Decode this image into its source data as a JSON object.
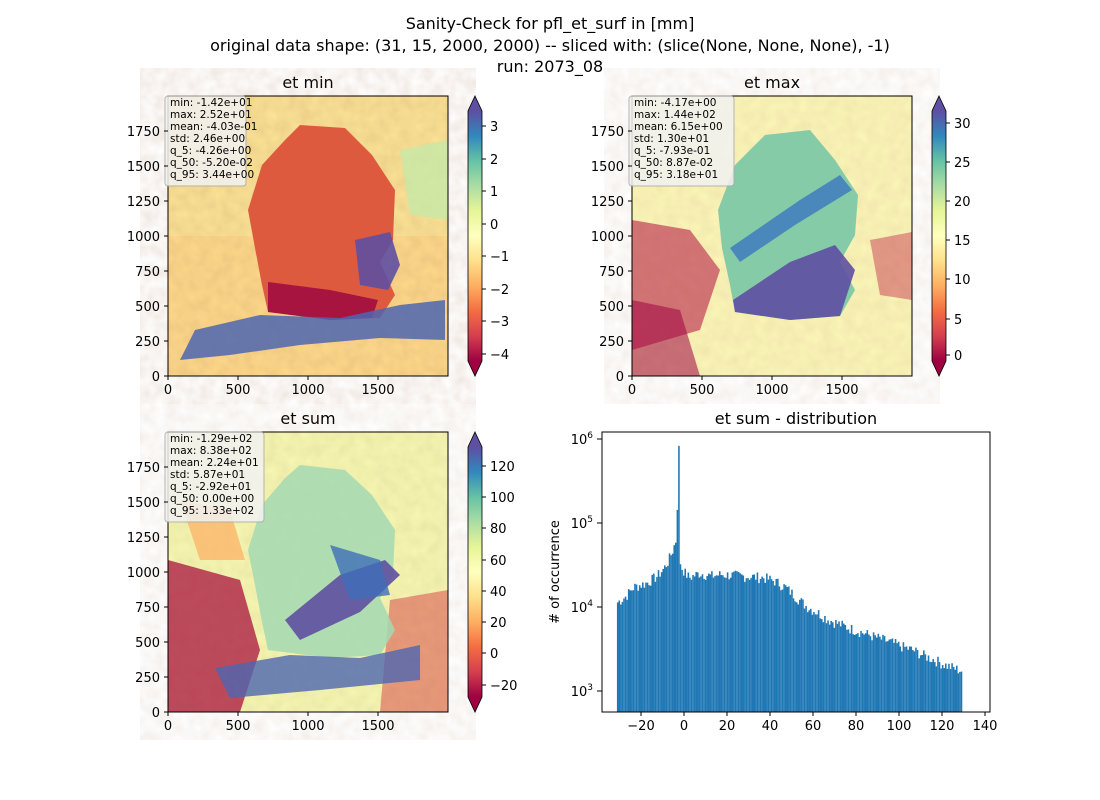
{
  "title_lines": [
    "Sanity-Check for pfl_et_surf in [mm]",
    "original data shape: (31, 15, 2000, 2000) -- sliced with: (slice(None, None, None), -1)",
    "run: 2073_08"
  ],
  "chart_data": [
    {
      "type": "heatmap",
      "title": "et min",
      "xlim": [
        0,
        2000
      ],
      "ylim": [
        0,
        2000
      ],
      "xticks": [
        "0",
        "500",
        "1000",
        "1500"
      ],
      "yticks": [
        "0",
        "250",
        "500",
        "750",
        "1000",
        "1250",
        "1500",
        "1750"
      ],
      "colormap": "Spectral",
      "colorbar": {
        "range": [
          -4.26,
          3.44
        ],
        "extend": "both",
        "ticks": [
          "−4",
          "−3",
          "−2",
          "−1",
          "0",
          "1",
          "2",
          "3"
        ]
      },
      "stats": [
        "min: -1.42e+01",
        "max: 2.52e+01",
        "mean: -4.03e-01",
        "std: 2.46e+00",
        "q_5: -4.26e+00",
        "q_50: -5.20e-02",
        "q_95: 3.44e+00"
      ]
    },
    {
      "type": "heatmap",
      "title": "et max",
      "xlim": [
        0,
        2000
      ],
      "ylim": [
        0,
        2000
      ],
      "xticks": [
        "0",
        "500",
        "1000",
        "1500"
      ],
      "yticks": [
        "0",
        "250",
        "500",
        "750",
        "1000",
        "1250",
        "1500",
        "1750"
      ],
      "colormap": "Spectral",
      "colorbar": {
        "range": [
          -0.793,
          31.8
        ],
        "extend": "both",
        "ticks": [
          "0",
          "5",
          "10",
          "15",
          "20",
          "25",
          "30"
        ]
      },
      "stats": [
        "min: -4.17e+00",
        "max: 1.44e+02",
        "mean: 6.15e+00",
        "std: 1.30e+01",
        "q_5: -7.93e-01",
        "q_50: 8.87e-02",
        "q_95: 3.18e+01"
      ]
    },
    {
      "type": "heatmap",
      "title": "et sum",
      "xlim": [
        0,
        2000
      ],
      "ylim": [
        0,
        2000
      ],
      "xticks": [
        "0",
        "500",
        "1000",
        "1500"
      ],
      "yticks": [
        "0",
        "250",
        "500",
        "750",
        "1000",
        "1250",
        "1500",
        "1750"
      ],
      "colormap": "Spectral",
      "colorbar": {
        "range": [
          -29.2,
          133
        ],
        "extend": "both",
        "ticks": [
          "−20",
          "0",
          "20",
          "40",
          "60",
          "80",
          "100",
          "120"
        ]
      },
      "stats": [
        "min: -1.29e+02",
        "max: 8.38e+02",
        "mean: 2.24e+01",
        "std: 5.87e+01",
        "q_5: -2.92e+01",
        "q_50: 0.00e+00",
        "q_95: 1.33e+02"
      ]
    },
    {
      "type": "bar",
      "title": "et sum - distribution",
      "ylabel": "# of occurrence",
      "xlabel": "",
      "yscale": "log",
      "xlim": [
        -36,
        146
      ],
      "ylim": [
        550,
        1200000
      ],
      "color": "#1f77b4",
      "xticks": [
        "−20",
        "0",
        "20",
        "40",
        "60",
        "80",
        "100",
        "120",
        "140"
      ],
      "yticks": [
        "10^3",
        "10^4",
        "10^5",
        "10^6"
      ],
      "profile_x": [
        -29,
        -25,
        -21,
        -15,
        -10,
        -7,
        -5,
        -3,
        -1,
        0,
        0.5,
        1,
        3,
        5,
        10,
        15,
        20,
        30,
        40,
        45,
        50,
        55,
        60,
        65,
        70,
        80,
        85,
        90,
        100,
        105,
        110,
        115,
        120,
        125,
        130,
        133
      ],
      "profile_y": [
        11000,
        13000,
        17000,
        19000,
        23000,
        28000,
        34000,
        45000,
        65000,
        820000,
        40000,
        30000,
        25000,
        22000,
        25000,
        23000,
        24000,
        23000,
        22000,
        20000,
        17000,
        13000,
        10000,
        8500,
        7000,
        5500,
        5000,
        4500,
        3700,
        3300,
        3000,
        2600,
        2300,
        2000,
        1800,
        1700
      ]
    }
  ]
}
